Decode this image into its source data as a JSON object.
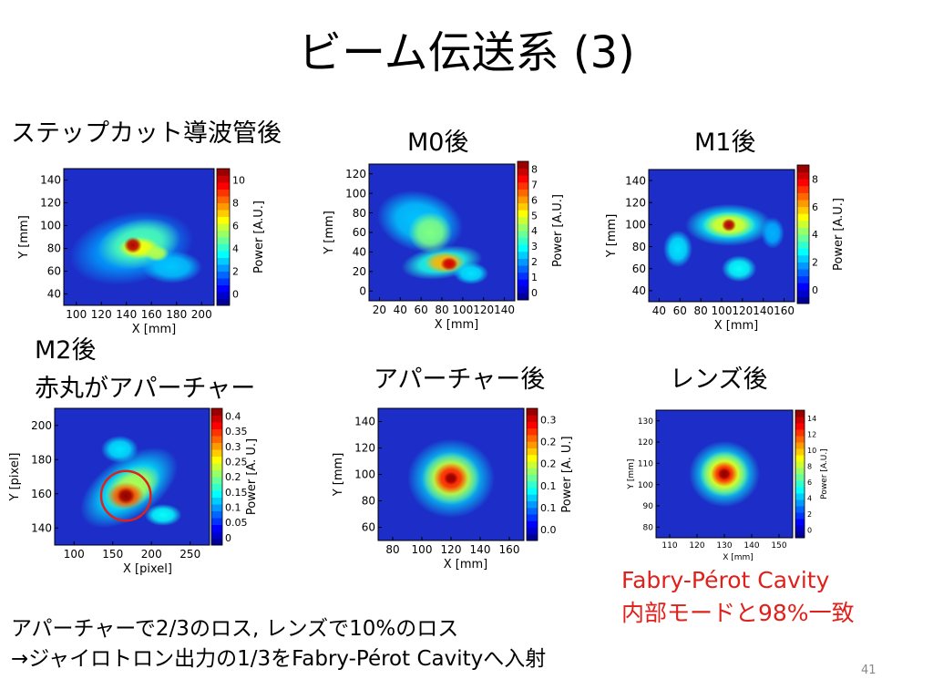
{
  "title": "ビーム伝送系 (3)",
  "page_number": "41",
  "panels": [
    {
      "label_lines": [
        "ステップカット導波管後"
      ],
      "xlabel": "X [mm]",
      "ylabel": "Y [mm]",
      "cblabel": "Power [A.U.]",
      "xticks": [
        "100",
        "120",
        "140",
        "160",
        "180",
        "200"
      ],
      "yticks": [
        "40",
        "60",
        "80",
        "100",
        "120",
        "140"
      ],
      "cbticks": [
        "0",
        "2",
        "4",
        "6",
        "8",
        "10"
      ]
    },
    {
      "label_lines": [
        "M0後"
      ],
      "xlabel": "X [mm]",
      "ylabel": "Y [mm]",
      "cblabel": "Power [A.U.]",
      "xticks": [
        "20",
        "40",
        "60",
        "80",
        "100",
        "120",
        "140"
      ],
      "yticks": [
        "0",
        "20",
        "40",
        "60",
        "80",
        "100",
        "120"
      ],
      "cbticks": [
        "0",
        "1",
        "2",
        "3",
        "4",
        "5",
        "6",
        "7",
        "8"
      ]
    },
    {
      "label_lines": [
        "M1後"
      ],
      "xlabel": "X [mm]",
      "ylabel": "Y [mm]",
      "cblabel": "Power [A.U.]",
      "xticks": [
        "40",
        "60",
        "80",
        "100",
        "120",
        "140",
        "160"
      ],
      "yticks": [
        "40",
        "60",
        "80",
        "100",
        "120",
        "140"
      ],
      "cbticks": [
        "0",
        "2",
        "4",
        "6",
        "8"
      ]
    },
    {
      "label_lines": [
        "M2後",
        "赤丸がアパーチャー"
      ],
      "xlabel": "X [pixel]",
      "ylabel": "Y [pixel]",
      "cblabel": "Power [A. U.]",
      "xticks": [
        "100",
        "150",
        "200",
        "250"
      ],
      "yticks": [
        "140",
        "160",
        "180",
        "200"
      ],
      "cbticks": [
        "0",
        "0.05",
        "0.1",
        "0.15",
        "0.2",
        "0.25",
        "0.3",
        "0.35",
        "0.4"
      ]
    },
    {
      "label_lines": [
        "アパーチャー後"
      ],
      "xlabel": "X [mm]",
      "ylabel": "Y [mm]",
      "cblabel": "Power [A. U.]",
      "xticks": [
        "80",
        "100",
        "120",
        "140",
        "160"
      ],
      "yticks": [
        "60",
        "80",
        "100",
        "120",
        "140"
      ],
      "cbticks": [
        "0.0",
        "0.1",
        "0.1",
        "0.2",
        "0.2",
        "0.3"
      ]
    },
    {
      "label_lines": [
        "レンズ後"
      ],
      "xlabel": "X [mm]",
      "ylabel": "Y [mm]",
      "cblabel": "Power [A.U.]",
      "xticks": [
        "110",
        "120",
        "130",
        "140",
        "150"
      ],
      "yticks": [
        "80",
        "90",
        "100",
        "110",
        "120",
        "130"
      ],
      "cbticks": [
        "0",
        "2",
        "4",
        "6",
        "8",
        "10",
        "12",
        "14"
      ]
    }
  ],
  "fabry_note": [
    "Fabry-Pérot Cavity",
    "内部モードと98%一致"
  ],
  "bottom_note": [
    "アパーチャーで2/3のロス, レンズで10%のロス",
    "→ジャイロトロン出力の1/3をFabry-Pérot Cavityへ入射"
  ],
  "colors": {
    "highlight": "#e0201b",
    "plot_background": "#1c2dc8"
  }
}
